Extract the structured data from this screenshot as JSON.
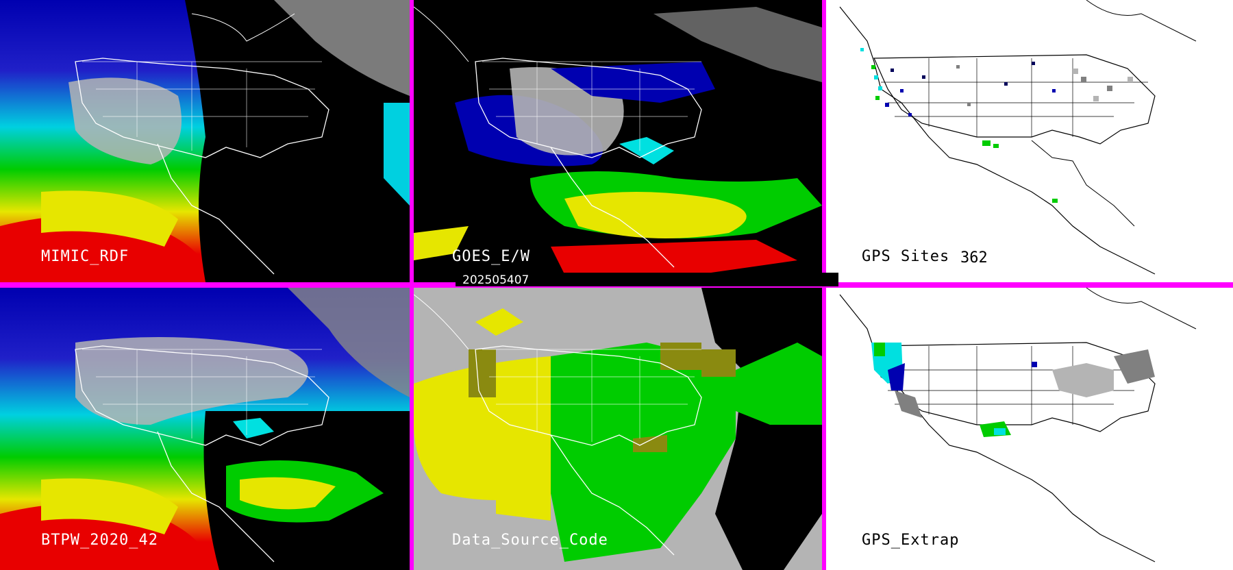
{
  "panels": {
    "p1": {
      "label": "MIMIC_RDF"
    },
    "p2": {
      "label": "GOES_E/W"
    },
    "p3": {
      "label": "GPS Sites",
      "count": "362"
    },
    "p4": {
      "label": "BTPW_2020_42"
    },
    "p5": {
      "label": "Data_Source_Code"
    },
    "p6": {
      "label": "GPS_Extrap"
    }
  },
  "date_stamp": "202505407",
  "colors": {
    "separator": "#ff00ff",
    "red": "#e80000",
    "yellow": "#e6e600",
    "green": "#00cc00",
    "cyan": "#00e0e0",
    "blue": "#0000b0",
    "navy": "#00005a",
    "gray": "#b4b4b4",
    "olive": "#8a8a10"
  }
}
